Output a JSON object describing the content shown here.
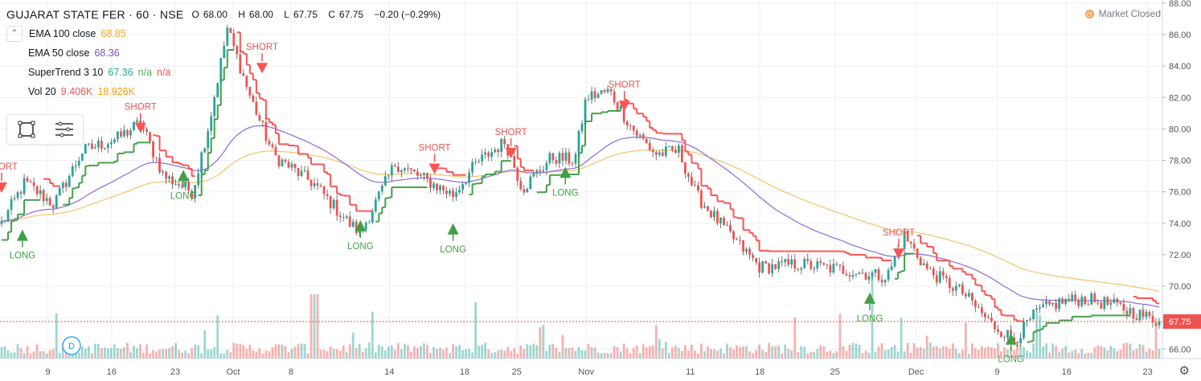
{
  "header": {
    "symbol": "GUJARAT STATE FER · 60 · NSE",
    "ohlc": [
      {
        "label": "O",
        "value": "68.00"
      },
      {
        "label": "H",
        "value": "68.00"
      },
      {
        "label": "L",
        "value": "67.75"
      },
      {
        "label": "C",
        "value": "67.75"
      },
      {
        "label": "",
        "value": "−0.20 (−0.29%)"
      }
    ],
    "ohlc_color": "#131722"
  },
  "indicators": [
    {
      "name": "EMA 100 close",
      "values": [
        "68.85"
      ],
      "colors": [
        "#f5a623"
      ]
    },
    {
      "name": "EMA 50 close",
      "values": [
        "68.36"
      ],
      "colors": [
        "#7b4fbf"
      ]
    },
    {
      "name": "SuperTrend 3 10",
      "values": [
        "67.36",
        "n/a",
        "n/a"
      ],
      "colors": [
        "#26a69a",
        "#4caf50",
        "#ef5350"
      ]
    },
    {
      "name": "Vol 20",
      "values": [
        "9.406K",
        "18.926K"
      ],
      "colors": [
        "#ef5350",
        "#ff9800"
      ]
    }
  ],
  "status": {
    "text": "Market Closed",
    "icon": "clock-icon"
  },
  "volume_badge": "D",
  "toolbar": {
    "icons": [
      "rectangle-select-icon",
      "settings-lines-icon"
    ]
  },
  "colors": {
    "up": "#26a69a",
    "down": "#ef5350",
    "wick": "#555555",
    "ema100": "#f5c26b",
    "ema50": "#8e6bd6",
    "st_up": "#43a047",
    "st_down": "#ff5252",
    "price_line": "#ef5350",
    "grid": "#eef0f3"
  },
  "chart_data": {
    "type": "candlestick",
    "y_axis": {
      "ticks": [
        "88.00",
        "86.00",
        "84.00",
        "82.00",
        "80.00",
        "78.00",
        "76.00",
        "74.00",
        "72.00",
        "70.00",
        "68.00",
        "66.00"
      ],
      "min": 65.4,
      "max": 88.2
    },
    "x_axis": {
      "ticks": [
        "9",
        "16",
        "23",
        "Oct",
        "8",
        "14",
        "18",
        "25",
        "Nov",
        "11",
        "18",
        "25",
        "Dec",
        "9",
        "16",
        "23"
      ]
    },
    "last_price": "67.75",
    "segments": [
      {
        "t": 0.0,
        "p": 74.0
      },
      {
        "t": 0.02,
        "p": 76.6
      },
      {
        "t": 0.045,
        "p": 75.2
      },
      {
        "t": 0.07,
        "p": 78.6
      },
      {
        "t": 0.1,
        "p": 79.4
      },
      {
        "t": 0.12,
        "p": 80.4
      },
      {
        "t": 0.14,
        "p": 77.0
      },
      {
        "t": 0.165,
        "p": 76.0
      },
      {
        "t": 0.18,
        "p": 80.6
      },
      {
        "t": 0.195,
        "p": 86.4
      },
      {
        "t": 0.215,
        "p": 82.0
      },
      {
        "t": 0.235,
        "p": 78.3
      },
      {
        "t": 0.27,
        "p": 76.5
      },
      {
        "t": 0.3,
        "p": 74.0
      },
      {
        "t": 0.31,
        "p": 73.4
      },
      {
        "t": 0.34,
        "p": 77.8
      },
      {
        "t": 0.365,
        "p": 76.8
      },
      {
        "t": 0.39,
        "p": 75.8
      },
      {
        "t": 0.41,
        "p": 77.8
      },
      {
        "t": 0.435,
        "p": 79.2
      },
      {
        "t": 0.45,
        "p": 76.2
      },
      {
        "t": 0.475,
        "p": 78.2
      },
      {
        "t": 0.495,
        "p": 78.0
      },
      {
        "t": 0.505,
        "p": 82.0
      },
      {
        "t": 0.525,
        "p": 82.4
      },
      {
        "t": 0.545,
        "p": 80.0
      },
      {
        "t": 0.565,
        "p": 78.4
      },
      {
        "t": 0.585,
        "p": 78.6
      },
      {
        "t": 0.6,
        "p": 75.8
      },
      {
        "t": 0.625,
        "p": 73.6
      },
      {
        "t": 0.655,
        "p": 71.2
      },
      {
        "t": 0.69,
        "p": 71.4
      },
      {
        "t": 0.73,
        "p": 71.0
      },
      {
        "t": 0.765,
        "p": 70.6
      },
      {
        "t": 0.78,
        "p": 73.2
      },
      {
        "t": 0.8,
        "p": 71.0
      },
      {
        "t": 0.83,
        "p": 69.6
      },
      {
        "t": 0.855,
        "p": 67.6
      },
      {
        "t": 0.875,
        "p": 66.6
      },
      {
        "t": 0.895,
        "p": 68.4
      },
      {
        "t": 0.915,
        "p": 69.0
      },
      {
        "t": 0.935,
        "p": 69.2
      },
      {
        "t": 0.96,
        "p": 68.8
      },
      {
        "t": 1.0,
        "p": 67.75
      }
    ],
    "signals": [
      {
        "type": "SHORT",
        "t": 0.0,
        "p": 76.6
      },
      {
        "type": "LONG",
        "t": 0.018,
        "p": 73.6
      },
      {
        "type": "SHORT",
        "t": 0.12,
        "p": 80.4
      },
      {
        "type": "LONG",
        "t": 0.157,
        "p": 77.4
      },
      {
        "type": "SHORT",
        "t": 0.225,
        "p": 84.2
      },
      {
        "type": "LONG",
        "t": 0.31,
        "p": 74.2
      },
      {
        "type": "SHORT",
        "t": 0.374,
        "p": 77.8
      },
      {
        "type": "LONG",
        "t": 0.39,
        "p": 74.0
      },
      {
        "type": "SHORT",
        "t": 0.44,
        "p": 78.8
      },
      {
        "type": "LONG",
        "t": 0.487,
        "p": 77.6
      },
      {
        "type": "SHORT",
        "t": 0.538,
        "p": 81.8
      },
      {
        "type": "LONG",
        "t": 0.75,
        "p": 69.6
      },
      {
        "type": "SHORT",
        "t": 0.775,
        "p": 72.4
      },
      {
        "type": "LONG",
        "t": 0.872,
        "p": 67.0
      }
    ]
  }
}
